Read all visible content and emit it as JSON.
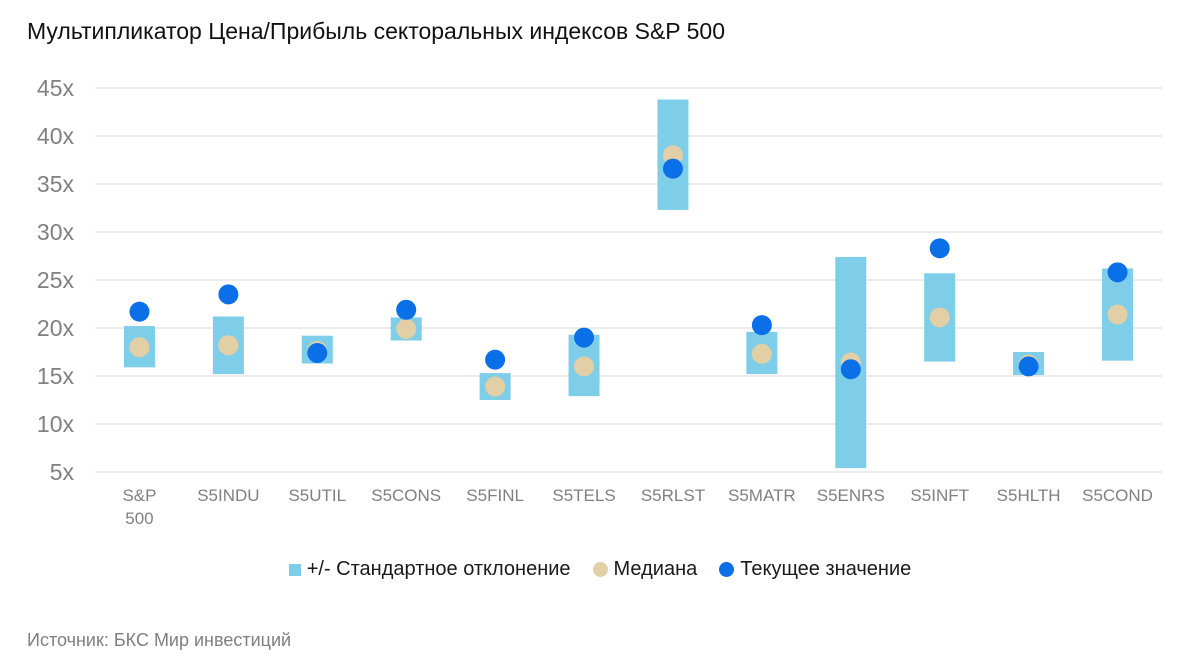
{
  "title": "Мультипликатор Цена/Прибыль секторальных индексов S&P 500",
  "source": "Источник: БКС Мир инвестиций",
  "colors": {
    "band": "#7ecde9",
    "median": "#e3cfa6",
    "current": "#0b6fe8",
    "grid": "#d9d9d9",
    "text": "#808080"
  },
  "legend": {
    "band": "+/- Стандартное отклонение",
    "median": "Медиана",
    "current": "Текущее значение"
  },
  "chart_data": {
    "type": "scatter",
    "title": "Мультипликатор Цена/Прибыль секторальных индексов S&P 500",
    "ylim": [
      5,
      45
    ],
    "yticks": [
      "5x",
      "10x",
      "15x",
      "20x",
      "25x",
      "30x",
      "35x",
      "40x",
      "45x"
    ],
    "ytick_values": [
      5,
      10,
      15,
      20,
      25,
      30,
      35,
      40,
      45
    ],
    "grid": true,
    "legend_position": "bottom",
    "categories": [
      {
        "label": [
          "S&P",
          "500"
        ],
        "low": 15.9,
        "high": 20.2,
        "median": 18.0,
        "current": 21.7
      },
      {
        "label": [
          "S5INDU"
        ],
        "low": 15.2,
        "high": 21.2,
        "median": 18.2,
        "current": 23.5
      },
      {
        "label": [
          "S5UTIL"
        ],
        "low": 16.3,
        "high": 19.2,
        "median": 17.6,
        "current": 17.4
      },
      {
        "label": [
          "S5CONS"
        ],
        "low": 18.7,
        "high": 21.1,
        "median": 19.9,
        "current": 21.9
      },
      {
        "label": [
          "S5FINL"
        ],
        "low": 12.5,
        "high": 15.3,
        "median": 13.9,
        "current": 16.7
      },
      {
        "label": [
          "S5TELS"
        ],
        "low": 12.9,
        "high": 19.3,
        "median": 16.0,
        "current": 19.0
      },
      {
        "label": [
          "S5RLST"
        ],
        "low": 32.3,
        "high": 43.8,
        "median": 38.0,
        "current": 36.6
      },
      {
        "label": [
          "S5MATR"
        ],
        "low": 15.2,
        "high": 19.6,
        "median": 17.3,
        "current": 20.3
      },
      {
        "label": [
          "S5ENRS"
        ],
        "low": 5.4,
        "high": 27.4,
        "median": 16.4,
        "current": 15.7
      },
      {
        "label": [
          "S5INFT"
        ],
        "low": 16.5,
        "high": 25.7,
        "median": 21.1,
        "current": 28.3
      },
      {
        "label": [
          "S5HLTH"
        ],
        "low": 15.1,
        "high": 17.5,
        "median": 16.2,
        "current": 16.0
      },
      {
        "label": [
          "S5COND"
        ],
        "low": 16.6,
        "high": 26.2,
        "median": 21.4,
        "current": 25.8
      }
    ]
  }
}
